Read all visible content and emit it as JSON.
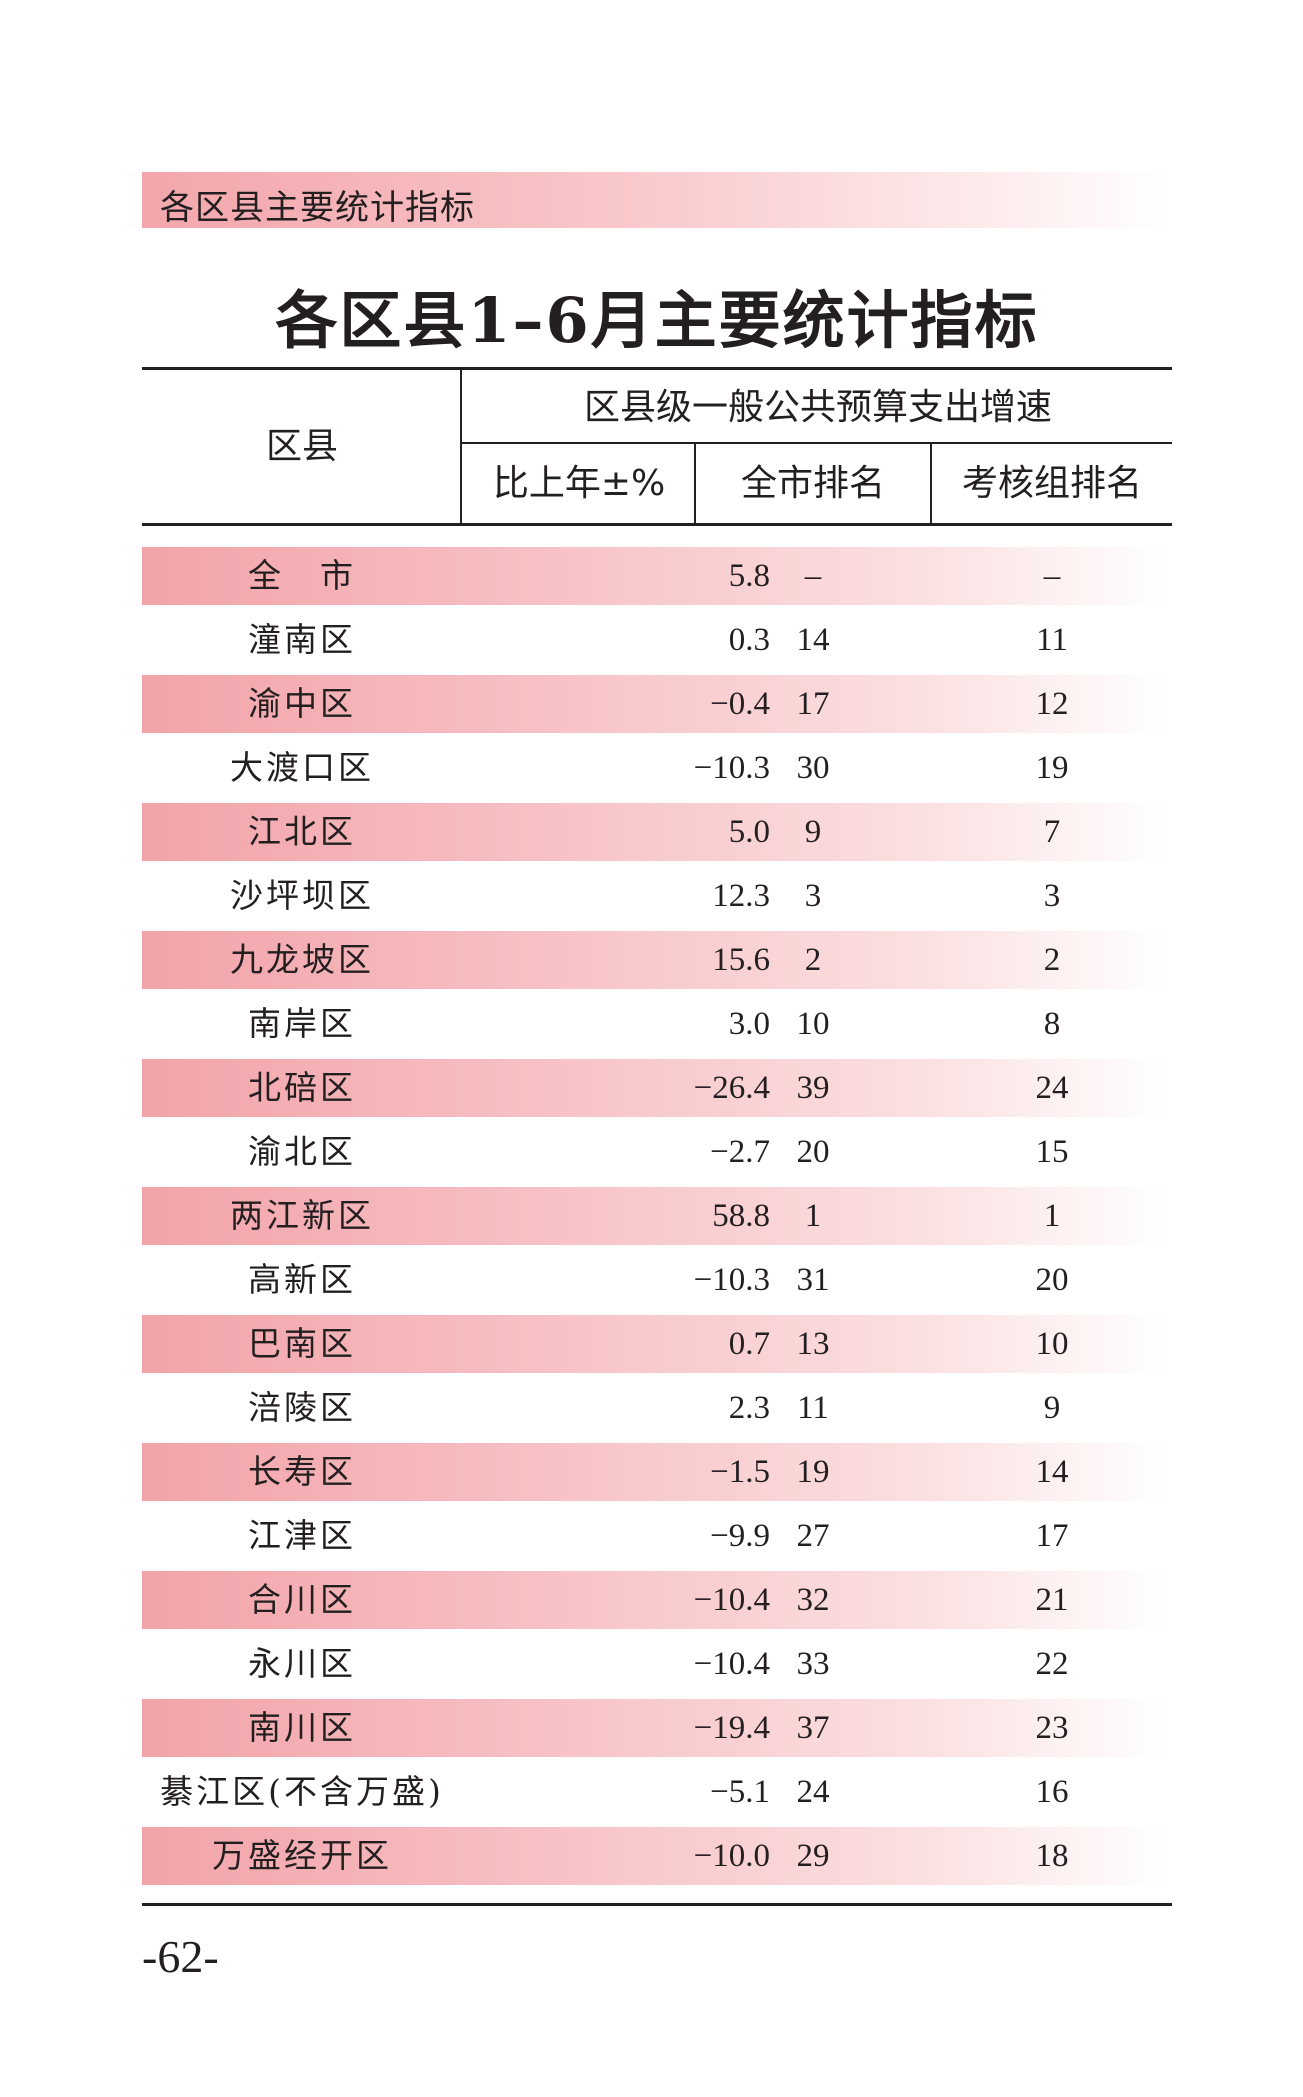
{
  "section_label": "各区县主要统计指标",
  "title": "各区县1–6月主要统计指标",
  "header": {
    "district": "区县",
    "group": "区县级一般公共预算支出增速",
    "col_pct": "比上年±%",
    "col_city_rank": "全市排名",
    "col_group_rank": "考核组排名"
  },
  "rows": [
    {
      "name": "全　市",
      "pct": "5.8",
      "city": "–",
      "group": "–"
    },
    {
      "name": "潼南区",
      "pct": "0.3",
      "city": "14",
      "group": "11"
    },
    {
      "name": "渝中区",
      "pct": "−0.4",
      "city": "17",
      "group": "12"
    },
    {
      "name": "大渡口区",
      "pct": "−10.3",
      "city": "30",
      "group": "19"
    },
    {
      "name": "江北区",
      "pct": "5.0",
      "city": "9",
      "group": "7"
    },
    {
      "name": "沙坪坝区",
      "pct": "12.3",
      "city": "3",
      "group": "3"
    },
    {
      "name": "九龙坡区",
      "pct": "15.6",
      "city": "2",
      "group": "2"
    },
    {
      "name": "南岸区",
      "pct": "3.0",
      "city": "10",
      "group": "8"
    },
    {
      "name": "北碚区",
      "pct": "−26.4",
      "city": "39",
      "group": "24"
    },
    {
      "name": "渝北区",
      "pct": "−2.7",
      "city": "20",
      "group": "15"
    },
    {
      "name": "两江新区",
      "pct": "58.8",
      "city": "1",
      "group": "1"
    },
    {
      "name": "高新区",
      "pct": "−10.3",
      "city": "31",
      "group": "20"
    },
    {
      "name": "巴南区",
      "pct": "0.7",
      "city": "13",
      "group": "10"
    },
    {
      "name": "涪陵区",
      "pct": "2.3",
      "city": "11",
      "group": "9"
    },
    {
      "name": "长寿区",
      "pct": "−1.5",
      "city": "19",
      "group": "14"
    },
    {
      "name": "江津区",
      "pct": "−9.9",
      "city": "27",
      "group": "17"
    },
    {
      "name": "合川区",
      "pct": "−10.4",
      "city": "32",
      "group": "21"
    },
    {
      "name": "永川区",
      "pct": "−10.4",
      "city": "33",
      "group": "22"
    },
    {
      "name": "南川区",
      "pct": "−19.4",
      "city": "37",
      "group": "23"
    },
    {
      "name": "綦江区(不含万盛)",
      "pct": "−5.1",
      "city": "24",
      "group": "16"
    },
    {
      "name": "万盛经开区",
      "pct": "−10.0",
      "city": "29",
      "group": "18"
    }
  ],
  "page_number": "-62-"
}
